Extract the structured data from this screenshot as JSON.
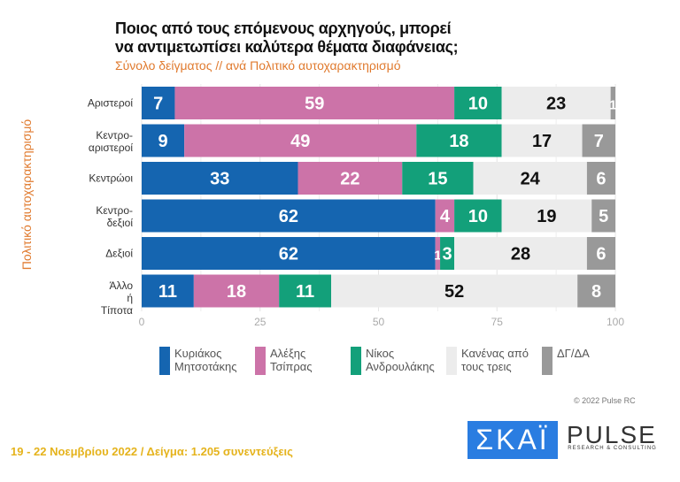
{
  "chart_data": {
    "type": "bar",
    "orientation": "horizontal",
    "stacked": true,
    "title": "Ποιος από τους επόμενους αρχηγούς, μπορεί να αντιμετωπίσει καλύτερα θέματα διαφάνειας;",
    "subtitle": "Σύνολο δείγματος // ανά Πολιτικό αυτοχαρακτηρισμό",
    "ylabel": "Πολιτικό αυτοχαρακτηρισμό",
    "categories": [
      "Αριστεροί",
      "Κεντρο- αριστεροί",
      "Κεντρώοι",
      "Κεντρο- δεξιοί",
      "Δεξιοί",
      "Άλλο ή Τίποτα"
    ],
    "xlim": [
      0,
      100
    ],
    "xticks": [
      "0",
      "25",
      "50",
      "75",
      "100"
    ],
    "grid": true,
    "legend_position": "bottom",
    "series": [
      {
        "name": "Κυριάκος Μητσοτάκης",
        "color": "#1565b0",
        "values": [
          7,
          9,
          33,
          62,
          62,
          11
        ]
      },
      {
        "name": "Αλέξης Τσίπρας",
        "color": "#cc73a8",
        "values": [
          59,
          49,
          22,
          4,
          1,
          18
        ]
      },
      {
        "name": "Νίκος Ανδρουλάκης",
        "color": "#13a07a",
        "values": [
          10,
          18,
          15,
          10,
          3,
          11
        ]
      },
      {
        "name": "Κανένας από τους τρεις",
        "color": "#ececec",
        "values": [
          23,
          17,
          24,
          19,
          28,
          52
        ]
      },
      {
        "name": "ΔΓ/ΔΑ",
        "color": "#999999",
        "values": [
          1,
          7,
          6,
          5,
          6,
          8
        ]
      }
    ]
  },
  "legend": {
    "items": [
      "Κυριάκος Μητσοτάκης",
      "Αλέξης Τσίπρας",
      "Νίκος Ανδρουλάκης",
      "Κανένας από τους τρεις",
      "ΔΓ/ΔΑ"
    ]
  },
  "copyright": "© 2022 Pulse RC",
  "footer": "19 - 22  Νοεμβρίου  2022  /  Δείγμα:  1.205 συνεντεύξεις",
  "logos": {
    "skai": "ΣΚΑΪ",
    "pulse": "PULSE",
    "pulse_tag": "RESEARCH & CONSULTING"
  }
}
